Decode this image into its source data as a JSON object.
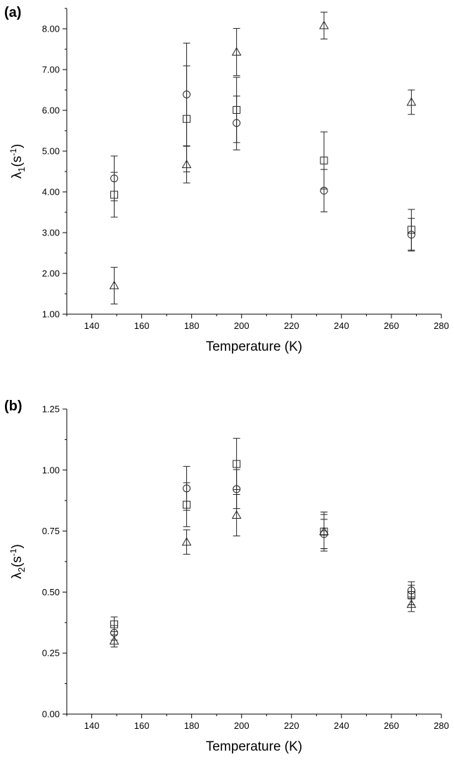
{
  "chart_data": [
    {
      "type": "scatter",
      "panel_label": "(a)",
      "xlabel": "Temperature (K)",
      "ylabel_base": "λ",
      "ylabel_sub": "1",
      "ylabel_unit_open": "(s",
      "ylabel_unit_sup": "-1",
      "ylabel_unit_close": ")",
      "xlim": [
        130,
        280
      ],
      "ylim": [
        1.0,
        8.5
      ],
      "xticks": [
        140,
        160,
        180,
        200,
        220,
        240,
        260,
        280
      ],
      "yticks": [
        1.0,
        2.0,
        3.0,
        4.0,
        5.0,
        6.0,
        7.0,
        8.0
      ],
      "ytick_labels": [
        "1.00",
        "2.00",
        "3.00",
        "4.00",
        "5.00",
        "6.00",
        "7.00",
        "8.00"
      ],
      "grid": false,
      "x": [
        149,
        178,
        198,
        233,
        268
      ],
      "series": [
        {
          "marker": "square",
          "values": [
            3.93,
            5.79,
            6.01,
            4.77,
            3.07
          ],
          "errors": [
            0.55,
            1.3,
            0.8,
            0.7,
            0.5
          ]
        },
        {
          "marker": "circle",
          "values": [
            4.33,
            6.39,
            5.69,
            4.03,
            2.95
          ],
          "errors": [
            0.55,
            1.26,
            0.66,
            0.52,
            0.4
          ]
        },
        {
          "marker": "triangle",
          "values": [
            1.7,
            4.67,
            7.43,
            8.08,
            6.2
          ],
          "errors": [
            0.45,
            0.45,
            0.58,
            0.33,
            0.3
          ]
        }
      ]
    },
    {
      "type": "scatter",
      "panel_label": "(b)",
      "xlabel": "Temperature (K)",
      "ylabel_base": "λ",
      "ylabel_sub": "2",
      "ylabel_unit_open": "(s",
      "ylabel_unit_sup": "-1",
      "ylabel_unit_close": ")",
      "xlim": [
        130,
        280
      ],
      "ylim": [
        0.0,
        1.25
      ],
      "xticks": [
        140,
        160,
        180,
        200,
        220,
        240,
        260,
        280
      ],
      "yticks": [
        0.0,
        0.25,
        0.5,
        0.75,
        1.0,
        1.25
      ],
      "ytick_labels": [
        "0.00",
        "0.25",
        "0.50",
        "0.75",
        "1.00",
        "1.25"
      ],
      "grid": false,
      "x": [
        149,
        178,
        198,
        233,
        268
      ],
      "series": [
        {
          "marker": "square",
          "values": [
            0.368,
            0.858,
            1.025,
            0.748,
            0.488
          ],
          "errors": [
            0.03,
            0.09,
            0.105,
            0.08,
            0.04
          ]
        },
        {
          "marker": "circle",
          "values": [
            0.333,
            0.925,
            0.922,
            0.738,
            0.507
          ],
          "errors": [
            0.03,
            0.09,
            0.08,
            0.06,
            0.035
          ]
        },
        {
          "marker": "triangle",
          "values": [
            0.3,
            0.705,
            0.815,
            0.748,
            0.45
          ],
          "errors": [
            0.025,
            0.05,
            0.085,
            0.07,
            0.03
          ]
        }
      ]
    }
  ]
}
